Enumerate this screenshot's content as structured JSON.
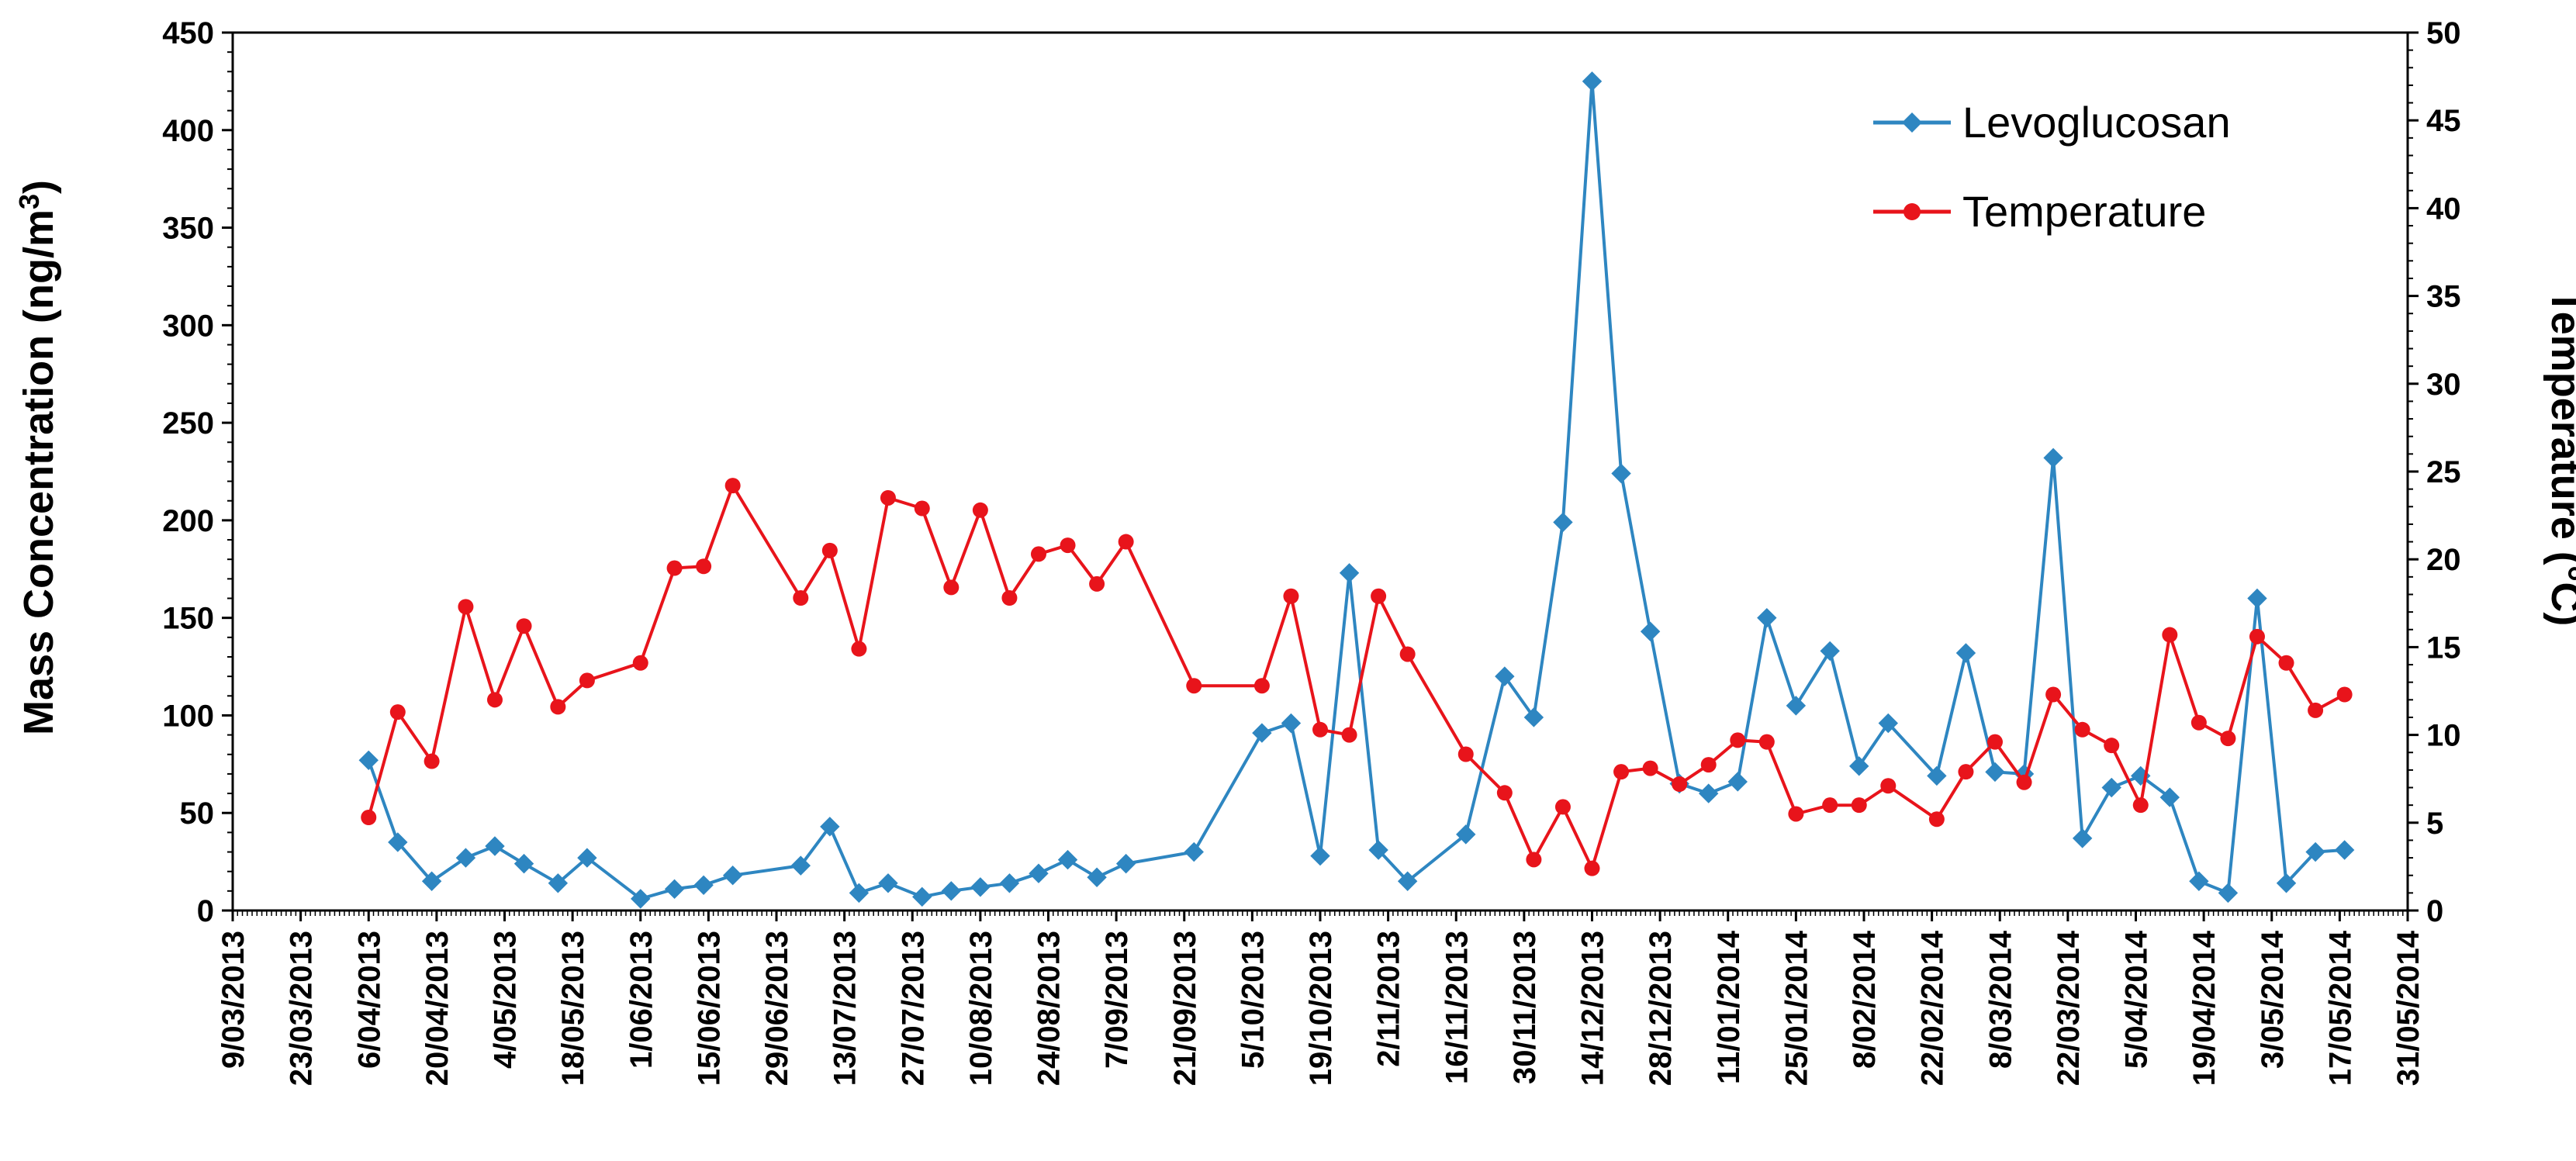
{
  "chart_data": {
    "type": "line",
    "x_axis": {
      "tick_labels": [
        "9/03/2013",
        "23/03/2013",
        "6/04/2013",
        "20/04/2013",
        "4/05/2013",
        "18/05/2013",
        "1/06/2013",
        "15/06/2013",
        "29/06/2013",
        "13/07/2013",
        "27/07/2013",
        "10/08/2013",
        "24/08/2013",
        "7/09/2013",
        "21/09/2013",
        "5/10/2013",
        "19/10/2013",
        "2/11/2013",
        "16/11/2013",
        "30/11/2013",
        "14/12/2013",
        "28/12/2013",
        "11/01/2014",
        "25/01/2014",
        "8/02/2014",
        "22/02/2014",
        "8/03/2014",
        "22/03/2014",
        "5/04/2014",
        "19/04/2014",
        "3/05/2014",
        "17/05/2014",
        "31/05/2014"
      ],
      "range": [
        "2013-03-09",
        "2014-05-31"
      ]
    },
    "y_axis_left": {
      "label": "Mass Concentration (ng/m",
      "label_sup": "3",
      "label_end": ")",
      "range": [
        0,
        450
      ],
      "ticks": [
        0,
        50,
        100,
        150,
        200,
        250,
        300,
        350,
        400,
        450
      ]
    },
    "y_axis_right": {
      "label": "Temperature (°C)",
      "range": [
        0,
        50
      ],
      "ticks": [
        0,
        5,
        10,
        15,
        20,
        25,
        30,
        35,
        40,
        45,
        50
      ]
    },
    "legend": {
      "position": "top-right",
      "entries": [
        "Levoglucosan",
        "Temperature"
      ]
    },
    "series": [
      {
        "name": "Levoglucosan",
        "axis": "left",
        "color": "#2E86C1",
        "marker": "diamond",
        "points": [
          [
            "2013-04-06",
            77
          ],
          [
            "2013-04-12",
            35
          ],
          [
            "2013-04-19",
            15
          ],
          [
            "2013-04-26",
            27
          ],
          [
            "2013-05-02",
            33
          ],
          [
            "2013-05-08",
            24
          ],
          [
            "2013-05-15",
            14
          ],
          [
            "2013-05-21",
            27
          ],
          [
            "2013-06-01",
            6
          ],
          [
            "2013-06-08",
            11
          ],
          [
            "2013-06-14",
            13
          ],
          [
            "2013-06-20",
            18
          ],
          [
            "2013-07-04",
            23
          ],
          [
            "2013-07-10",
            43
          ],
          [
            "2013-07-16",
            9
          ],
          [
            "2013-07-22",
            14
          ],
          [
            "2013-07-29",
            7
          ],
          [
            "2013-08-04",
            10
          ],
          [
            "2013-08-10",
            12
          ],
          [
            "2013-08-16",
            14
          ],
          [
            "2013-08-22",
            19
          ],
          [
            "2013-08-28",
            26
          ],
          [
            "2013-09-03",
            17
          ],
          [
            "2013-09-09",
            24
          ],
          [
            "2013-09-23",
            30
          ],
          [
            "2013-10-07",
            91
          ],
          [
            "2013-10-13",
            96
          ],
          [
            "2013-10-19",
            28
          ],
          [
            "2013-10-25",
            173
          ],
          [
            "2013-10-31",
            31
          ],
          [
            "2013-11-06",
            15
          ],
          [
            "2013-11-18",
            39
          ],
          [
            "2013-11-26",
            120
          ],
          [
            "2013-12-02",
            99
          ],
          [
            "2013-12-08",
            199
          ],
          [
            "2013-12-14",
            425
          ],
          [
            "2013-12-20",
            224
          ],
          [
            "2013-12-26",
            143
          ],
          [
            "2014-01-01",
            65
          ],
          [
            "2014-01-07",
            60
          ],
          [
            "2014-01-13",
            66
          ],
          [
            "2014-01-19",
            150
          ],
          [
            "2014-01-25",
            105
          ],
          [
            "2014-02-01",
            133
          ],
          [
            "2014-02-07",
            74
          ],
          [
            "2014-02-13",
            96
          ],
          [
            "2014-02-23",
            69
          ],
          [
            "2014-03-01",
            132
          ],
          [
            "2014-03-07",
            71
          ],
          [
            "2014-03-13",
            70
          ],
          [
            "2014-03-19",
            232
          ],
          [
            "2014-03-25",
            37
          ],
          [
            "2014-03-31",
            63
          ],
          [
            "2014-04-06",
            69
          ],
          [
            "2014-04-12",
            58
          ],
          [
            "2014-04-18",
            15
          ],
          [
            "2014-04-24",
            9
          ],
          [
            "2014-04-30",
            160
          ],
          [
            "2014-05-06",
            14
          ],
          [
            "2014-05-12",
            30
          ],
          [
            "2014-05-18",
            31
          ]
        ]
      },
      {
        "name": "Temperature",
        "axis": "right",
        "color": "#E8141B",
        "marker": "circle",
        "points": [
          [
            "2013-04-06",
            5.3
          ],
          [
            "2013-04-12",
            11.3
          ],
          [
            "2013-04-19",
            8.5
          ],
          [
            "2013-04-26",
            17.3
          ],
          [
            "2013-05-02",
            12.0
          ],
          [
            "2013-05-08",
            16.2
          ],
          [
            "2013-05-15",
            11.6
          ],
          [
            "2013-05-21",
            13.1
          ],
          [
            "2013-06-01",
            14.1
          ],
          [
            "2013-06-08",
            19.5
          ],
          [
            "2013-06-14",
            19.6
          ],
          [
            "2013-06-20",
            24.2
          ],
          [
            "2013-07-04",
            17.8
          ],
          [
            "2013-07-10",
            20.5
          ],
          [
            "2013-07-16",
            14.9
          ],
          [
            "2013-07-22",
            23.5
          ],
          [
            "2013-07-29",
            22.9
          ],
          [
            "2013-08-04",
            18.4
          ],
          [
            "2013-08-10",
            22.8
          ],
          [
            "2013-08-16",
            17.8
          ],
          [
            "2013-08-22",
            20.3
          ],
          [
            "2013-08-28",
            20.8
          ],
          [
            "2013-09-03",
            18.6
          ],
          [
            "2013-09-09",
            21.0
          ],
          [
            "2013-09-23",
            12.8
          ],
          [
            "2013-10-07",
            12.8
          ],
          [
            "2013-10-13",
            17.9
          ],
          [
            "2013-10-19",
            10.3
          ],
          [
            "2013-10-25",
            10.0
          ],
          [
            "2013-10-31",
            17.9
          ],
          [
            "2013-11-06",
            14.6
          ],
          [
            "2013-11-18",
            8.9
          ],
          [
            "2013-11-26",
            6.7
          ],
          [
            "2013-12-02",
            2.9
          ],
          [
            "2013-12-08",
            5.9
          ],
          [
            "2013-12-14",
            2.4
          ],
          [
            "2013-12-20",
            7.9
          ],
          [
            "2013-12-26",
            8.1
          ],
          [
            "2014-01-01",
            7.2
          ],
          [
            "2014-01-07",
            8.3
          ],
          [
            "2014-01-13",
            9.7
          ],
          [
            "2014-01-19",
            9.6
          ],
          [
            "2014-01-25",
            5.5
          ],
          [
            "2014-02-01",
            6.0
          ],
          [
            "2014-02-07",
            6.0
          ],
          [
            "2014-02-13",
            7.1
          ],
          [
            "2014-02-23",
            5.2
          ],
          [
            "2014-03-01",
            7.9
          ],
          [
            "2014-03-07",
            9.6
          ],
          [
            "2014-03-13",
            7.3
          ],
          [
            "2014-03-19",
            12.3
          ],
          [
            "2014-03-25",
            10.3
          ],
          [
            "2014-03-31",
            9.4
          ],
          [
            "2014-04-06",
            6.0
          ],
          [
            "2014-04-12",
            15.7
          ],
          [
            "2014-04-18",
            10.7
          ],
          [
            "2014-04-24",
            9.8
          ],
          [
            "2014-04-30",
            15.6
          ],
          [
            "2014-05-06",
            14.1
          ],
          [
            "2014-05-12",
            11.4
          ],
          [
            "2014-05-18",
            12.3
          ]
        ]
      }
    ]
  }
}
